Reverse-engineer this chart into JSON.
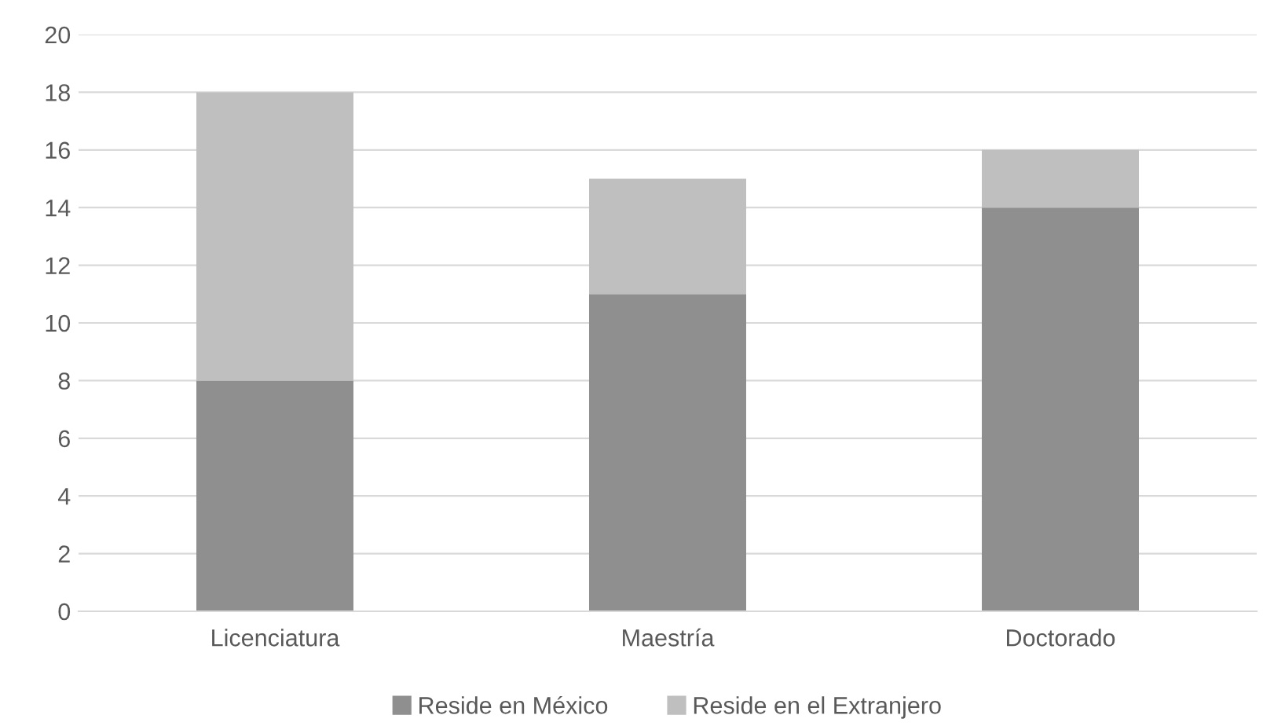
{
  "chart_data": {
    "type": "bar",
    "stacked": true,
    "categories": [
      "Licenciatura",
      "Maestría",
      "Doctorado"
    ],
    "series": [
      {
        "name": "Reside en México",
        "color": "#8f8f8f",
        "values": [
          8,
          11,
          14
        ]
      },
      {
        "name": "Reside en el Extranjero",
        "color": "#bfbfbf",
        "values": [
          10,
          4,
          2
        ]
      }
    ],
    "ylim": [
      0,
      20
    ],
    "yticks": [
      0,
      2,
      4,
      6,
      8,
      10,
      12,
      14,
      16,
      18,
      20
    ],
    "grid": "y",
    "legend": "bottom"
  }
}
